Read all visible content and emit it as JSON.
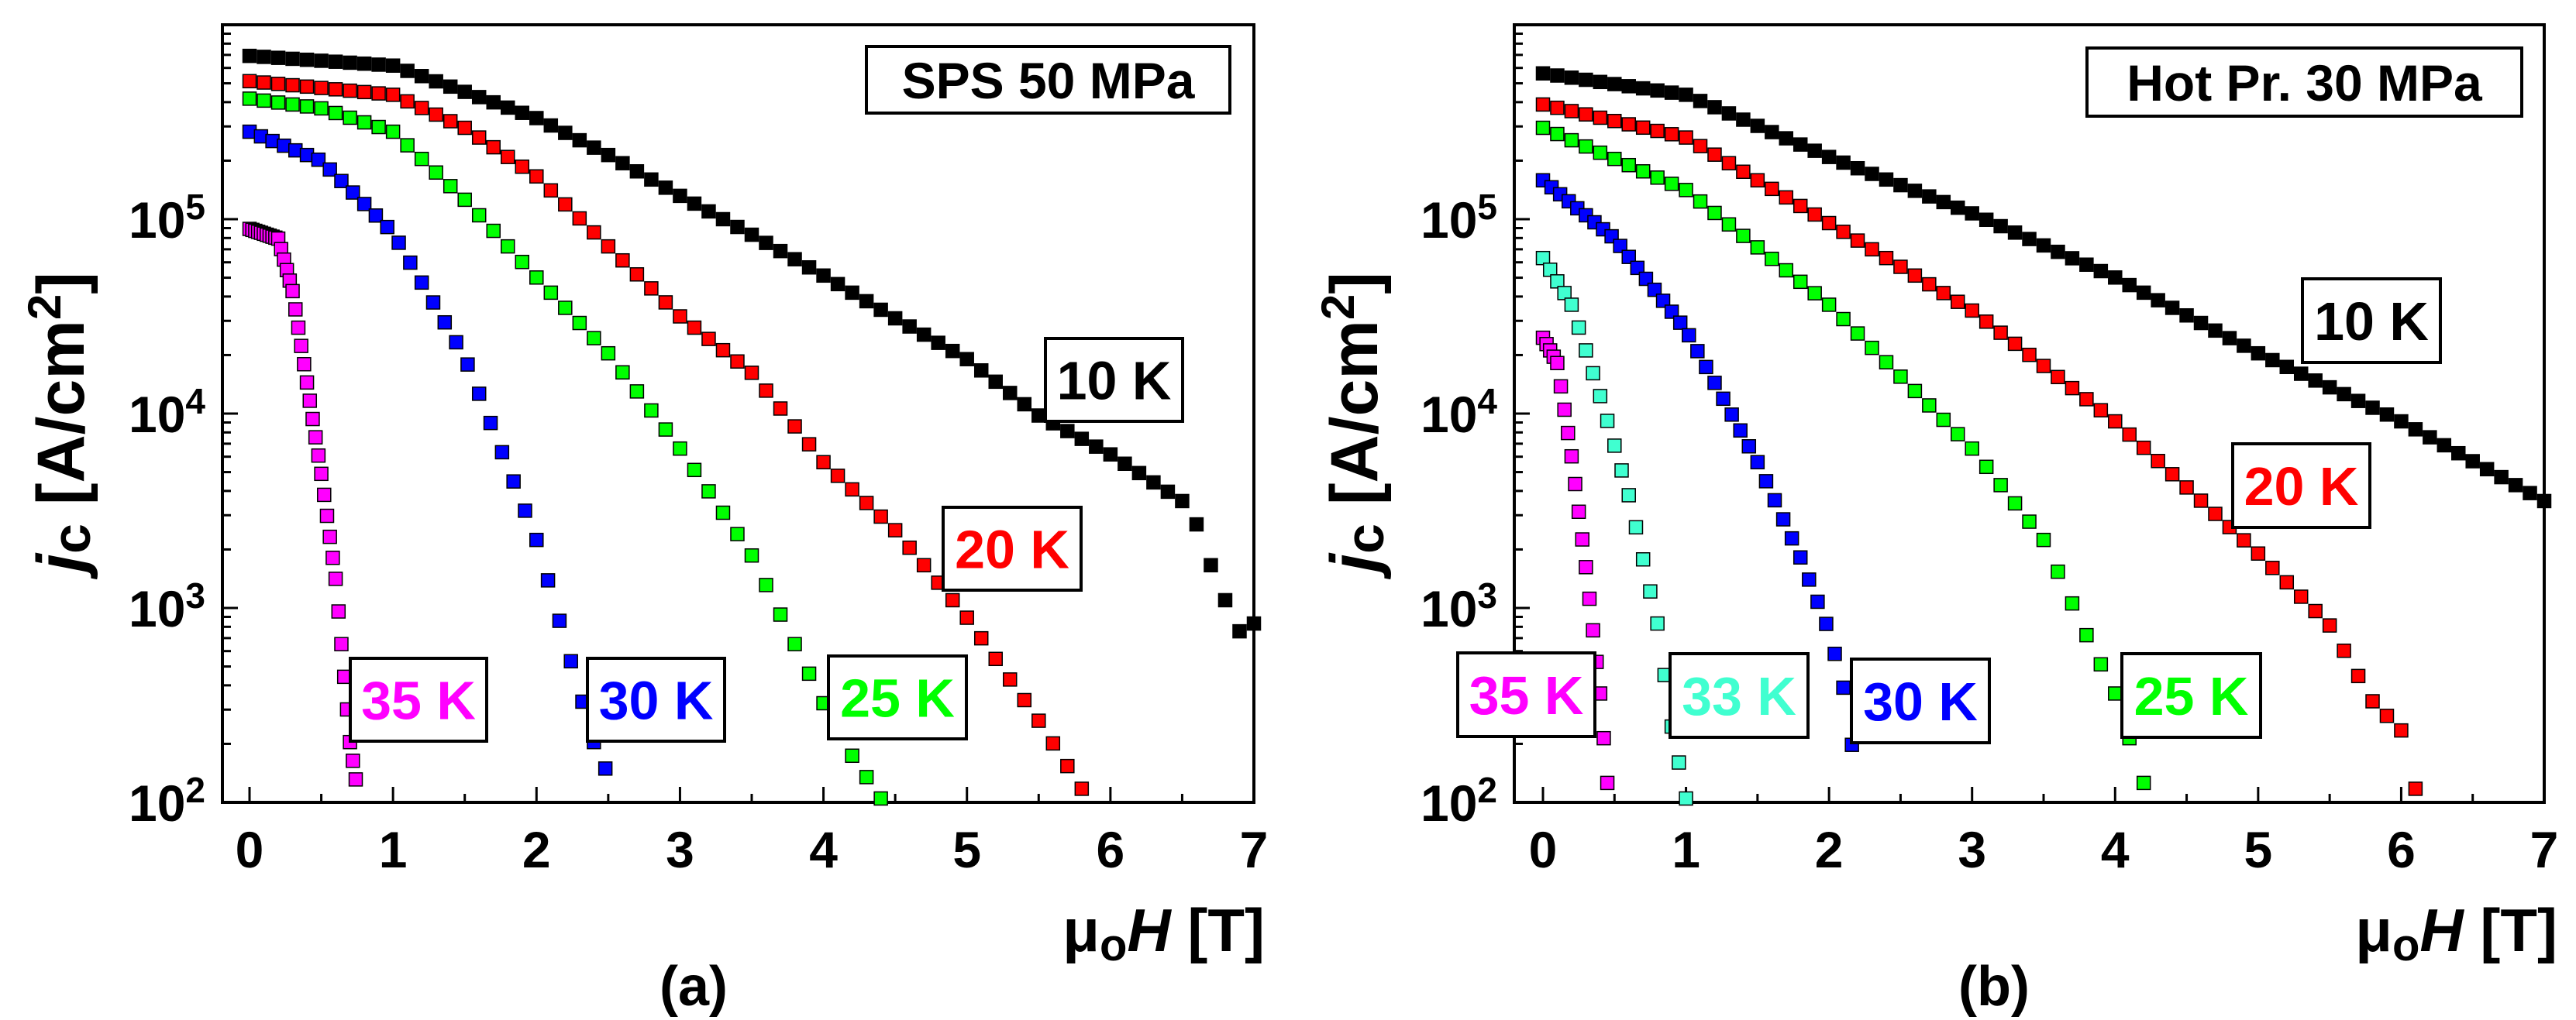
{
  "chart_data": [
    {
      "type": "scatter",
      "panel_label": "(a)",
      "title_box": "SPS 50 MPa",
      "xlabel": {
        "mu": "μ",
        "sub": "o",
        "var": "H",
        "unit": " [T]"
      },
      "ylabel": {
        "j": "j",
        "c": "c",
        "unit": " [A/cm",
        "sup": "2",
        "close": "]"
      },
      "xlim": [
        -0.2,
        7
      ],
      "ylim": [
        100,
        1000000
      ],
      "yscale": "log",
      "x_ticks": [
        "0",
        "1",
        "2",
        "3",
        "4",
        "5",
        "6",
        "7"
      ],
      "y_ticks": [
        {
          "base": "10",
          "exp": "2"
        },
        {
          "base": "10",
          "exp": "3"
        },
        {
          "base": "10",
          "exp": "4"
        },
        {
          "base": "10",
          "exp": "5"
        }
      ],
      "series": [
        {
          "name": "10 K",
          "color": "#000000",
          "marker_step": 0.1,
          "x": [
            0,
            1,
            2,
            2.5,
            3,
            3.5,
            4,
            4.5,
            5,
            5.5,
            6,
            6.5,
            6.6,
            6.7,
            6.8,
            6.9,
            7.0
          ],
          "log10_y": [
            5.84,
            5.79,
            5.52,
            5.33,
            5.12,
            4.92,
            4.71,
            4.49,
            4.28,
            3.99,
            3.79,
            3.55,
            3.43,
            3.22,
            3.04,
            2.88,
            2.92
          ]
        },
        {
          "name": "20 K",
          "color": "#ff0000",
          "marker_step": 0.1,
          "x": [
            0,
            1,
            1.5,
            2,
            2.5,
            3,
            3.5,
            4,
            4.5,
            5,
            5.5,
            5.8
          ],
          "log10_y": [
            5.71,
            5.64,
            5.47,
            5.22,
            4.86,
            4.5,
            4.21,
            3.75,
            3.4,
            2.95,
            2.42,
            2.07
          ]
        },
        {
          "name": "25 K",
          "color": "#00ff00",
          "marker_step": 0.1,
          "x": [
            0,
            0.5,
            1,
            1.5,
            2,
            2.5,
            3,
            3.5,
            4,
            4.2,
            4.4
          ],
          "log10_y": [
            5.62,
            5.57,
            5.45,
            5.1,
            4.7,
            4.31,
            3.82,
            3.27,
            2.51,
            2.24,
            2.02
          ]
        },
        {
          "name": "30 K",
          "color": "#0000ff",
          "marker_step": 0.08,
          "x": [
            0,
            0.5,
            1,
            1.5,
            2,
            2.2,
            2.4,
            2.5
          ],
          "log10_y": [
            5.45,
            5.3,
            4.93,
            4.29,
            3.35,
            2.83,
            2.31,
            2.14
          ]
        },
        {
          "name": "35 K",
          "color": "#ff00ff",
          "marker_step": 0.02,
          "x": [
            0,
            0.2,
            0.3,
            0.4,
            0.5,
            0.6,
            0.7,
            0.75
          ],
          "log10_y": [
            4.95,
            4.9,
            4.63,
            4.16,
            3.69,
            3.15,
            2.31,
            2.07
          ]
        }
      ]
    },
    {
      "type": "scatter",
      "panel_label": "(b)",
      "title_box": "Hot Pr. 30 MPa",
      "xlabel": {
        "mu": "μ",
        "sub": "o",
        "var": "H",
        "unit": " [T]"
      },
      "ylabel": {
        "j": "j",
        "c": "c",
        "unit": " [A/cm",
        "sup": "2",
        "close": "]"
      },
      "xlim": [
        -0.2,
        7
      ],
      "ylim": [
        100,
        1000000
      ],
      "yscale": "log",
      "x_ticks": [
        "0",
        "1",
        "2",
        "3",
        "4",
        "5",
        "6",
        "7"
      ],
      "y_ticks": [
        {
          "base": "10",
          "exp": "2"
        },
        {
          "base": "10",
          "exp": "3"
        },
        {
          "base": "10",
          "exp": "4"
        },
        {
          "base": "10",
          "exp": "5"
        }
      ],
      "series": [
        {
          "name": "10 K",
          "color": "#000000",
          "marker_step": 0.1,
          "x": [
            0,
            1,
            2,
            3,
            4,
            5,
            6,
            7
          ],
          "log10_y": [
            5.75,
            5.64,
            5.32,
            5.03,
            4.7,
            4.31,
            3.96,
            3.55
          ]
        },
        {
          "name": "20 K",
          "color": "#ff0000",
          "marker_step": 0.1,
          "x": [
            0,
            1,
            2,
            3,
            4,
            5,
            5.5,
            5.8,
            6,
            6.1
          ],
          "log10_y": [
            5.59,
            5.42,
            4.98,
            4.53,
            3.96,
            3.28,
            2.91,
            2.52,
            2.37,
            2.07
          ]
        },
        {
          "name": "25 K",
          "color": "#00ff00",
          "marker_step": 0.1,
          "x": [
            0,
            1,
            2,
            3,
            3.5,
            3.8,
            4,
            4.2
          ],
          "log10_y": [
            5.47,
            5.15,
            4.56,
            3.82,
            3.35,
            2.86,
            2.56,
            2.1
          ]
        },
        {
          "name": "30 K",
          "color": "#0000ff",
          "marker_step": 0.06,
          "x": [
            0,
            0.5,
            1,
            1.5,
            1.8,
            2,
            2.1,
            2.2
          ],
          "log10_y": [
            5.2,
            4.9,
            4.43,
            3.75,
            3.26,
            2.88,
            2.59,
            2.1
          ]
        },
        {
          "name": "33 K",
          "color": "#40ffd0",
          "marker_step": 0.05,
          "x": [
            0,
            0.2,
            0.4,
            0.6,
            0.8,
            0.9,
            1.0
          ],
          "log10_y": [
            4.8,
            4.56,
            4.09,
            3.58,
            2.92,
            2.39,
            2.02
          ]
        },
        {
          "name": "35 K",
          "color": "#ff00ff",
          "marker_step": 0.025,
          "x": [
            0,
            0.1,
            0.2,
            0.3,
            0.4,
            0.45
          ],
          "log10_y": [
            4.39,
            4.26,
            3.78,
            3.21,
            2.56,
            2.1
          ]
        }
      ]
    }
  ]
}
